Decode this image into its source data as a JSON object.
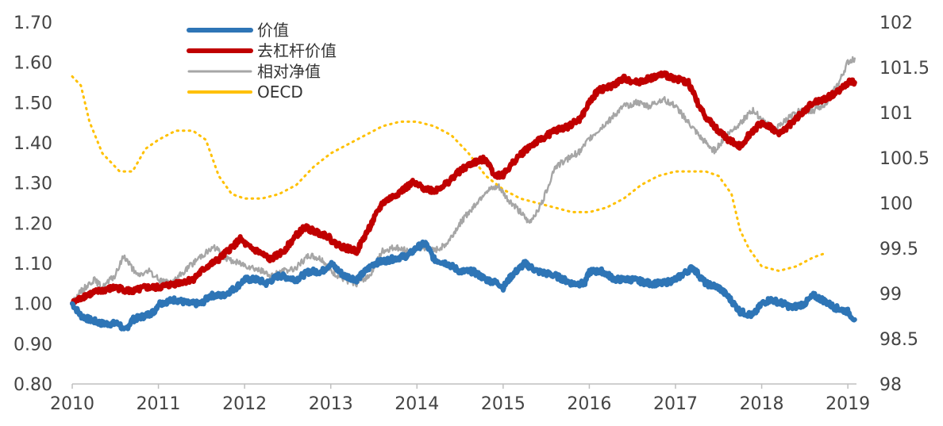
{
  "chart_data": {
    "type": "line",
    "title": "",
    "xlabel": "",
    "ylabel": "",
    "xlim": [
      2010,
      2019.1
    ],
    "ylim_left": [
      0.8,
      1.7
    ],
    "ylim_right": [
      98,
      102
    ],
    "x_ticks": [
      "2010",
      "2011",
      "2012",
      "2013",
      "2014",
      "2015",
      "2016",
      "2017",
      "2018",
      "2019"
    ],
    "y_left_ticks": [
      "0.80",
      "0.90",
      "1.00",
      "1.10",
      "1.20",
      "1.30",
      "1.40",
      "1.50",
      "1.60",
      "1.70"
    ],
    "y_right_ticks": [
      "98",
      "98.5",
      "99",
      "99.5",
      "100",
      "100.5",
      "101",
      "101.5",
      "102"
    ],
    "grid": false,
    "legend_position": "top-left",
    "series": [
      {
        "name": "价值",
        "axis": "left",
        "color": "#2E75B6",
        "style": "solid-thick",
        "points": [
          [
            2010.0,
            1.0
          ],
          [
            2010.1,
            0.97
          ],
          [
            2010.2,
            0.96
          ],
          [
            2010.35,
            0.95
          ],
          [
            2010.55,
            0.95
          ],
          [
            2010.6,
            0.93
          ],
          [
            2010.7,
            0.96
          ],
          [
            2010.85,
            0.97
          ],
          [
            2010.95,
            0.98
          ],
          [
            2011.0,
            1.0
          ],
          [
            2011.2,
            1.01
          ],
          [
            2011.35,
            1.0
          ],
          [
            2011.5,
            1.0
          ],
          [
            2011.6,
            1.02
          ],
          [
            2011.75,
            1.02
          ],
          [
            2011.9,
            1.04
          ],
          [
            2012.0,
            1.06
          ],
          [
            2012.15,
            1.06
          ],
          [
            2012.25,
            1.05
          ],
          [
            2012.4,
            1.07
          ],
          [
            2012.6,
            1.06
          ],
          [
            2012.75,
            1.08
          ],
          [
            2012.9,
            1.08
          ],
          [
            2013.0,
            1.1
          ],
          [
            2013.15,
            1.07
          ],
          [
            2013.3,
            1.06
          ],
          [
            2013.4,
            1.08
          ],
          [
            2013.5,
            1.1
          ],
          [
            2013.7,
            1.11
          ],
          [
            2013.9,
            1.12
          ],
          [
            2014.0,
            1.14
          ],
          [
            2014.1,
            1.15
          ],
          [
            2014.2,
            1.11
          ],
          [
            2014.35,
            1.1
          ],
          [
            2014.5,
            1.08
          ],
          [
            2014.65,
            1.08
          ],
          [
            2014.8,
            1.06
          ],
          [
            2014.95,
            1.05
          ],
          [
            2015.0,
            1.04
          ],
          [
            2015.1,
            1.07
          ],
          [
            2015.25,
            1.1
          ],
          [
            2015.4,
            1.08
          ],
          [
            2015.6,
            1.07
          ],
          [
            2015.8,
            1.05
          ],
          [
            2015.95,
            1.05
          ],
          [
            2016.0,
            1.08
          ],
          [
            2016.15,
            1.08
          ],
          [
            2016.3,
            1.06
          ],
          [
            2016.5,
            1.06
          ],
          [
            2016.7,
            1.05
          ],
          [
            2016.85,
            1.05
          ],
          [
            2017.0,
            1.06
          ],
          [
            2017.2,
            1.09
          ],
          [
            2017.35,
            1.05
          ],
          [
            2017.5,
            1.04
          ],
          [
            2017.6,
            1.02
          ],
          [
            2017.75,
            0.98
          ],
          [
            2017.9,
            0.97
          ],
          [
            2018.0,
            1.0
          ],
          [
            2018.1,
            1.01
          ],
          [
            2018.25,
            1.0
          ],
          [
            2018.35,
            0.99
          ],
          [
            2018.5,
            1.0
          ],
          [
            2018.6,
            1.02
          ],
          [
            2018.7,
            1.01
          ],
          [
            2018.85,
            0.99
          ],
          [
            2019.0,
            0.98
          ],
          [
            2019.08,
            0.96
          ]
        ]
      },
      {
        "name": "去杠杆价值",
        "axis": "left",
        "color": "#C00000",
        "style": "solid-thick",
        "points": [
          [
            2010.0,
            1.0
          ],
          [
            2010.15,
            1.02
          ],
          [
            2010.3,
            1.03
          ],
          [
            2010.5,
            1.04
          ],
          [
            2010.7,
            1.03
          ],
          [
            2010.85,
            1.04
          ],
          [
            2011.0,
            1.04
          ],
          [
            2011.2,
            1.05
          ],
          [
            2011.4,
            1.06
          ],
          [
            2011.55,
            1.09
          ],
          [
            2011.7,
            1.11
          ],
          [
            2011.85,
            1.14
          ],
          [
            2011.95,
            1.16
          ],
          [
            2012.05,
            1.14
          ],
          [
            2012.15,
            1.13
          ],
          [
            2012.3,
            1.11
          ],
          [
            2012.45,
            1.13
          ],
          [
            2012.6,
            1.17
          ],
          [
            2012.7,
            1.19
          ],
          [
            2012.8,
            1.18
          ],
          [
            2012.95,
            1.17
          ],
          [
            2013.05,
            1.15
          ],
          [
            2013.15,
            1.14
          ],
          [
            2013.3,
            1.13
          ],
          [
            2013.45,
            1.19
          ],
          [
            2013.6,
            1.25
          ],
          [
            2013.75,
            1.27
          ],
          [
            2013.95,
            1.3
          ],
          [
            2014.05,
            1.29
          ],
          [
            2014.2,
            1.28
          ],
          [
            2014.35,
            1.3
          ],
          [
            2014.5,
            1.33
          ],
          [
            2014.65,
            1.35
          ],
          [
            2014.8,
            1.36
          ],
          [
            2014.9,
            1.32
          ],
          [
            2015.0,
            1.32
          ],
          [
            2015.15,
            1.36
          ],
          [
            2015.3,
            1.39
          ],
          [
            2015.45,
            1.41
          ],
          [
            2015.6,
            1.43
          ],
          [
            2015.75,
            1.44
          ],
          [
            2015.9,
            1.46
          ],
          [
            2016.0,
            1.5
          ],
          [
            2016.1,
            1.53
          ],
          [
            2016.25,
            1.54
          ],
          [
            2016.4,
            1.56
          ],
          [
            2016.55,
            1.55
          ],
          [
            2016.7,
            1.56
          ],
          [
            2016.85,
            1.57
          ],
          [
            2017.0,
            1.56
          ],
          [
            2017.15,
            1.55
          ],
          [
            2017.3,
            1.48
          ],
          [
            2017.45,
            1.44
          ],
          [
            2017.6,
            1.41
          ],
          [
            2017.75,
            1.39
          ],
          [
            2017.85,
            1.42
          ],
          [
            2018.0,
            1.45
          ],
          [
            2018.1,
            1.44
          ],
          [
            2018.2,
            1.42
          ],
          [
            2018.3,
            1.44
          ],
          [
            2018.45,
            1.47
          ],
          [
            2018.6,
            1.5
          ],
          [
            2018.75,
            1.51
          ],
          [
            2018.9,
            1.53
          ],
          [
            2019.0,
            1.55
          ],
          [
            2019.08,
            1.55
          ]
        ]
      },
      {
        "name": "相对净值",
        "axis": "left",
        "color": "#A6A6A6",
        "style": "solid",
        "points": [
          [
            2010.0,
            1.0
          ],
          [
            2010.1,
            1.03
          ],
          [
            2010.25,
            1.06
          ],
          [
            2010.35,
            1.04
          ],
          [
            2010.5,
            1.07
          ],
          [
            2010.6,
            1.12
          ],
          [
            2010.75,
            1.07
          ],
          [
            2010.9,
            1.08
          ],
          [
            2011.0,
            1.06
          ],
          [
            2011.15,
            1.05
          ],
          [
            2011.3,
            1.08
          ],
          [
            2011.5,
            1.12
          ],
          [
            2011.65,
            1.14
          ],
          [
            2011.8,
            1.11
          ],
          [
            2011.95,
            1.1
          ],
          [
            2012.1,
            1.09
          ],
          [
            2012.3,
            1.07
          ],
          [
            2012.45,
            1.08
          ],
          [
            2012.6,
            1.09
          ],
          [
            2012.75,
            1.12
          ],
          [
            2012.9,
            1.11
          ],
          [
            2013.0,
            1.08
          ],
          [
            2013.15,
            1.06
          ],
          [
            2013.3,
            1.05
          ],
          [
            2013.45,
            1.07
          ],
          [
            2013.6,
            1.13
          ],
          [
            2013.75,
            1.14
          ],
          [
            2013.9,
            1.13
          ],
          [
            2014.05,
            1.14
          ],
          [
            2014.2,
            1.13
          ],
          [
            2014.35,
            1.15
          ],
          [
            2014.5,
            1.2
          ],
          [
            2014.65,
            1.24
          ],
          [
            2014.8,
            1.28
          ],
          [
            2014.95,
            1.29
          ],
          [
            2015.05,
            1.26
          ],
          [
            2015.15,
            1.24
          ],
          [
            2015.3,
            1.2
          ],
          [
            2015.45,
            1.25
          ],
          [
            2015.6,
            1.34
          ],
          [
            2015.75,
            1.36
          ],
          [
            2015.9,
            1.38
          ],
          [
            2016.0,
            1.41
          ],
          [
            2016.1,
            1.43
          ],
          [
            2016.25,
            1.46
          ],
          [
            2016.4,
            1.49
          ],
          [
            2016.55,
            1.5
          ],
          [
            2016.7,
            1.49
          ],
          [
            2016.85,
            1.51
          ],
          [
            2017.0,
            1.49
          ],
          [
            2017.15,
            1.45
          ],
          [
            2017.3,
            1.41
          ],
          [
            2017.45,
            1.38
          ],
          [
            2017.6,
            1.42
          ],
          [
            2017.75,
            1.45
          ],
          [
            2017.9,
            1.48
          ],
          [
            2018.0,
            1.46
          ],
          [
            2018.15,
            1.43
          ],
          [
            2018.3,
            1.46
          ],
          [
            2018.45,
            1.48
          ],
          [
            2018.6,
            1.48
          ],
          [
            2018.75,
            1.5
          ],
          [
            2018.9,
            1.55
          ],
          [
            2019.0,
            1.6
          ],
          [
            2019.08,
            1.61
          ]
        ]
      },
      {
        "name": "OECD",
        "axis": "right",
        "color": "#FFC000",
        "style": "dotted",
        "points": [
          [
            2010.0,
            101.4
          ],
          [
            2010.1,
            101.3
          ],
          [
            2010.2,
            100.9
          ],
          [
            2010.35,
            100.55
          ],
          [
            2010.55,
            100.35
          ],
          [
            2010.7,
            100.35
          ],
          [
            2010.85,
            100.6
          ],
          [
            2011.0,
            100.7
          ],
          [
            2011.2,
            100.8
          ],
          [
            2011.4,
            100.8
          ],
          [
            2011.55,
            100.7
          ],
          [
            2011.7,
            100.3
          ],
          [
            2011.85,
            100.1
          ],
          [
            2012.0,
            100.05
          ],
          [
            2012.2,
            100.05
          ],
          [
            2012.4,
            100.1
          ],
          [
            2012.6,
            100.2
          ],
          [
            2012.8,
            100.4
          ],
          [
            2013.0,
            100.55
          ],
          [
            2013.2,
            100.65
          ],
          [
            2013.4,
            100.75
          ],
          [
            2013.6,
            100.85
          ],
          [
            2013.8,
            100.9
          ],
          [
            2014.0,
            100.9
          ],
          [
            2014.2,
            100.85
          ],
          [
            2014.4,
            100.75
          ],
          [
            2014.6,
            100.55
          ],
          [
            2014.8,
            100.3
          ],
          [
            2015.0,
            100.15
          ],
          [
            2015.2,
            100.05
          ],
          [
            2015.4,
            100.0
          ],
          [
            2015.6,
            99.95
          ],
          [
            2015.8,
            99.9
          ],
          [
            2016.0,
            99.9
          ],
          [
            2016.2,
            99.95
          ],
          [
            2016.4,
            100.05
          ],
          [
            2016.6,
            100.2
          ],
          [
            2016.8,
            100.3
          ],
          [
            2017.0,
            100.35
          ],
          [
            2017.2,
            100.35
          ],
          [
            2017.35,
            100.35
          ],
          [
            2017.5,
            100.3
          ],
          [
            2017.65,
            100.1
          ],
          [
            2017.75,
            99.7
          ],
          [
            2017.85,
            99.5
          ],
          [
            2018.0,
            99.3
          ],
          [
            2018.2,
            99.25
          ],
          [
            2018.4,
            99.3
          ],
          [
            2018.6,
            99.4
          ],
          [
            2018.75,
            99.45
          ]
        ]
      }
    ]
  }
}
